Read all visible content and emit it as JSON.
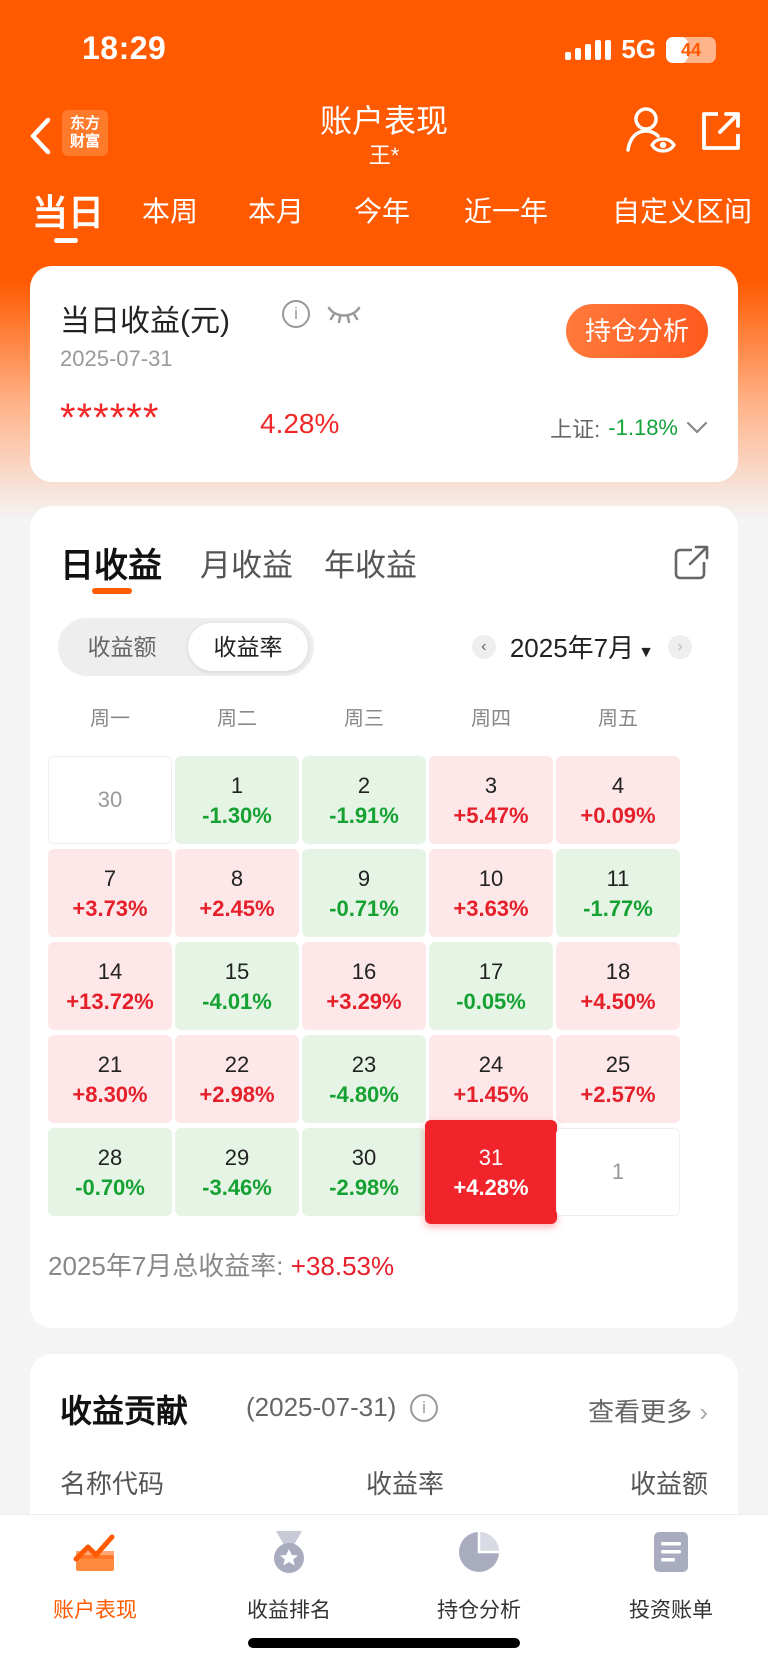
{
  "status_bar": {
    "time": "18:29",
    "network": "5G",
    "battery": "44"
  },
  "nav": {
    "logo_text": "东方\n财富",
    "title": "账户表现",
    "subtitle": "王*"
  },
  "period_tabs": [
    "当日",
    "本周",
    "本月",
    "今年",
    "近一年",
    "自定义区间"
  ],
  "summary": {
    "title": "当日收益(元)",
    "date": "2025-07-31",
    "button_label": "持仓分析",
    "hidden_value": "******",
    "rate": "4.28%",
    "index_label": "上证:",
    "index_value": "-1.18%"
  },
  "calendar": {
    "tabs": [
      "日收益",
      "月收益",
      "年收益"
    ],
    "segment": [
      "收益额",
      "收益率"
    ],
    "month_label": "2025年7月",
    "weekdays": [
      "周一",
      "周二",
      "周三",
      "周四",
      "周五"
    ],
    "cells": [
      {
        "day": "30",
        "rate": "",
        "kind": "blank"
      },
      {
        "day": "1",
        "rate": "-1.30%",
        "kind": "down"
      },
      {
        "day": "2",
        "rate": "-1.91%",
        "kind": "down"
      },
      {
        "day": "3",
        "rate": "+5.47%",
        "kind": "up"
      },
      {
        "day": "4",
        "rate": "+0.09%",
        "kind": "up"
      },
      {
        "day": "7",
        "rate": "+3.73%",
        "kind": "up"
      },
      {
        "day": "8",
        "rate": "+2.45%",
        "kind": "up"
      },
      {
        "day": "9",
        "rate": "-0.71%",
        "kind": "down"
      },
      {
        "day": "10",
        "rate": "+3.63%",
        "kind": "up"
      },
      {
        "day": "11",
        "rate": "-1.77%",
        "kind": "down"
      },
      {
        "day": "14",
        "rate": "+13.72%",
        "kind": "up"
      },
      {
        "day": "15",
        "rate": "-4.01%",
        "kind": "down"
      },
      {
        "day": "16",
        "rate": "+3.29%",
        "kind": "up"
      },
      {
        "day": "17",
        "rate": "-0.05%",
        "kind": "down"
      },
      {
        "day": "18",
        "rate": "+4.50%",
        "kind": "up"
      },
      {
        "day": "21",
        "rate": "+8.30%",
        "kind": "up"
      },
      {
        "day": "22",
        "rate": "+2.98%",
        "kind": "up"
      },
      {
        "day": "23",
        "rate": "-4.80%",
        "kind": "down"
      },
      {
        "day": "24",
        "rate": "+1.45%",
        "kind": "up"
      },
      {
        "day": "25",
        "rate": "+2.57%",
        "kind": "up"
      },
      {
        "day": "28",
        "rate": "-0.70%",
        "kind": "down"
      },
      {
        "day": "29",
        "rate": "-3.46%",
        "kind": "down"
      },
      {
        "day": "30",
        "rate": "-2.98%",
        "kind": "down"
      },
      {
        "day": "31",
        "rate": "+4.28%",
        "kind": "today"
      },
      {
        "day": "1",
        "rate": "",
        "kind": "blank"
      }
    ],
    "total_label": "2025年7月总收益率:",
    "total_value": "+38.53%"
  },
  "contribution": {
    "title": "收益贡献",
    "date": "(2025-07-31)",
    "more": "查看更多",
    "columns": [
      "名称代码",
      "收益率",
      "收益额"
    ]
  },
  "tabbar": [
    "账户表现",
    "收益排名",
    "持仓分析",
    "投资账单"
  ],
  "colors": {
    "brand": "#ff5a00",
    "up": "#e5202a",
    "down": "#16a233"
  }
}
